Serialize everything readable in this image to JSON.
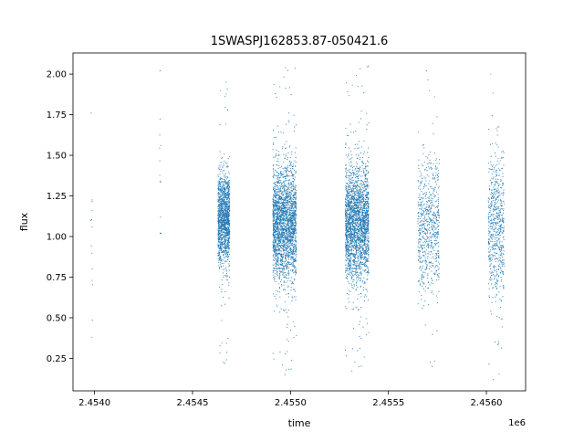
{
  "chart_data": {
    "type": "scatter",
    "title": "1SWASPJ162853.87-050421.6",
    "xlabel": "time",
    "ylabel": "flux",
    "x_offset_label": "1e6",
    "xlim": [
      2.4538899,
      2.4562
    ],
    "ylim": [
      0.05,
      2.13
    ],
    "x_ticks": [
      2.454,
      2.4545,
      2.455,
      2.4555,
      2.456
    ],
    "x_tick_labels": [
      "2.4540",
      "2.4545",
      "2.4550",
      "2.4555",
      "2.4560"
    ],
    "y_ticks": [
      0.25,
      0.5,
      0.75,
      1.0,
      1.25,
      1.5,
      1.75,
      2.0
    ],
    "y_tick_labels": [
      "0.25",
      "0.50",
      "0.75",
      "1.00",
      "1.25",
      "1.50",
      "1.75",
      "2.00"
    ],
    "grid": false,
    "legend": "none",
    "marker_color": "#1f77b4",
    "observing_seasons": [
      {
        "x_start": 2.45398,
        "x_end": 2.45399,
        "center_flux": 1.0,
        "flux_spread": 0.25,
        "min_flux": 0.38,
        "max_flux": 1.76,
        "count": 14
      },
      {
        "x_start": 2.45433,
        "x_end": 2.45434,
        "center_flux": 1.4,
        "flux_spread": 0.25,
        "min_flux": 1.02,
        "max_flux": 2.02,
        "count": 14
      },
      {
        "x_start": 2.45463,
        "x_end": 2.45469,
        "center_flux": 1.1,
        "flux_spread": 0.14,
        "min_flux": 0.22,
        "max_flux": 1.95,
        "count": 1400
      },
      {
        "x_start": 2.45491,
        "x_end": 2.45503,
        "center_flux": 1.08,
        "flux_spread": 0.17,
        "min_flux": 0.15,
        "max_flux": 2.04,
        "count": 2400
      },
      {
        "x_start": 2.45528,
        "x_end": 2.4554,
        "center_flux": 1.08,
        "flux_spread": 0.17,
        "min_flux": 0.17,
        "max_flux": 2.05,
        "count": 2400
      },
      {
        "x_start": 2.45565,
        "x_end": 2.45576,
        "center_flux": 1.07,
        "flux_spread": 0.2,
        "min_flux": 0.2,
        "max_flux": 2.02,
        "count": 700
      },
      {
        "x_start": 2.45601,
        "x_end": 2.45609,
        "center_flux": 1.05,
        "flux_spread": 0.21,
        "min_flux": 0.12,
        "max_flux": 2.0,
        "count": 650
      }
    ]
  }
}
